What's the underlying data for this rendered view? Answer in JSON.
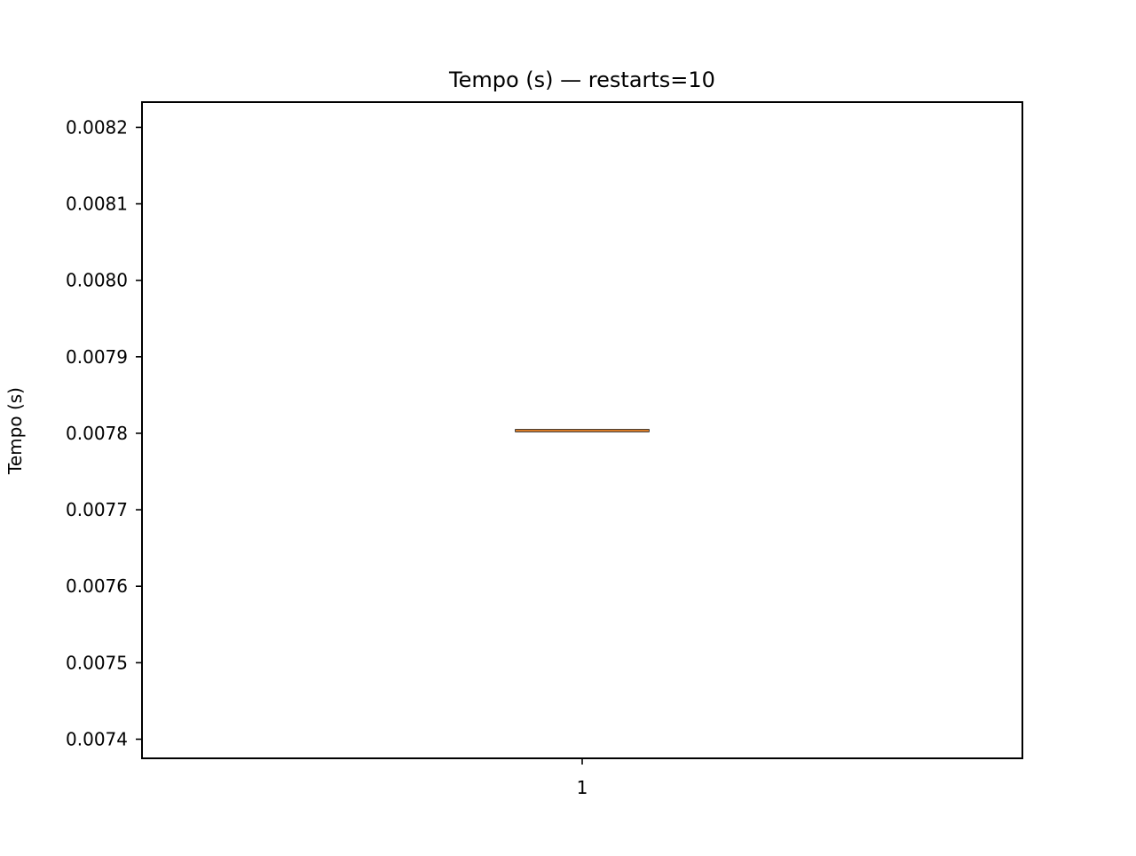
{
  "chart_data": {
    "type": "box",
    "title": "Tempo (s) — restarts=10",
    "xlabel": "",
    "ylabel": "Tempo (s)",
    "categories": [
      "1"
    ],
    "ylim": [
      0.007375,
      0.008233
    ],
    "yticks": [
      0.0074,
      0.0075,
      0.0076,
      0.0077,
      0.0078,
      0.0079,
      0.008,
      0.0081,
      0.0082
    ],
    "ytick_labels": [
      "0.0074",
      "0.0075",
      "0.0076",
      "0.0077",
      "0.0078",
      "0.0079",
      "0.0080",
      "0.0081",
      "0.0082"
    ],
    "boxes": [
      {
        "category": "1",
        "whislo": 0.0078035,
        "q1": 0.0078035,
        "med": 0.0078035,
        "q3": 0.0078035,
        "whishi": 0.0078035
      }
    ],
    "grid": false,
    "colors": {
      "box": "#000000",
      "median": "#e07f28"
    }
  }
}
